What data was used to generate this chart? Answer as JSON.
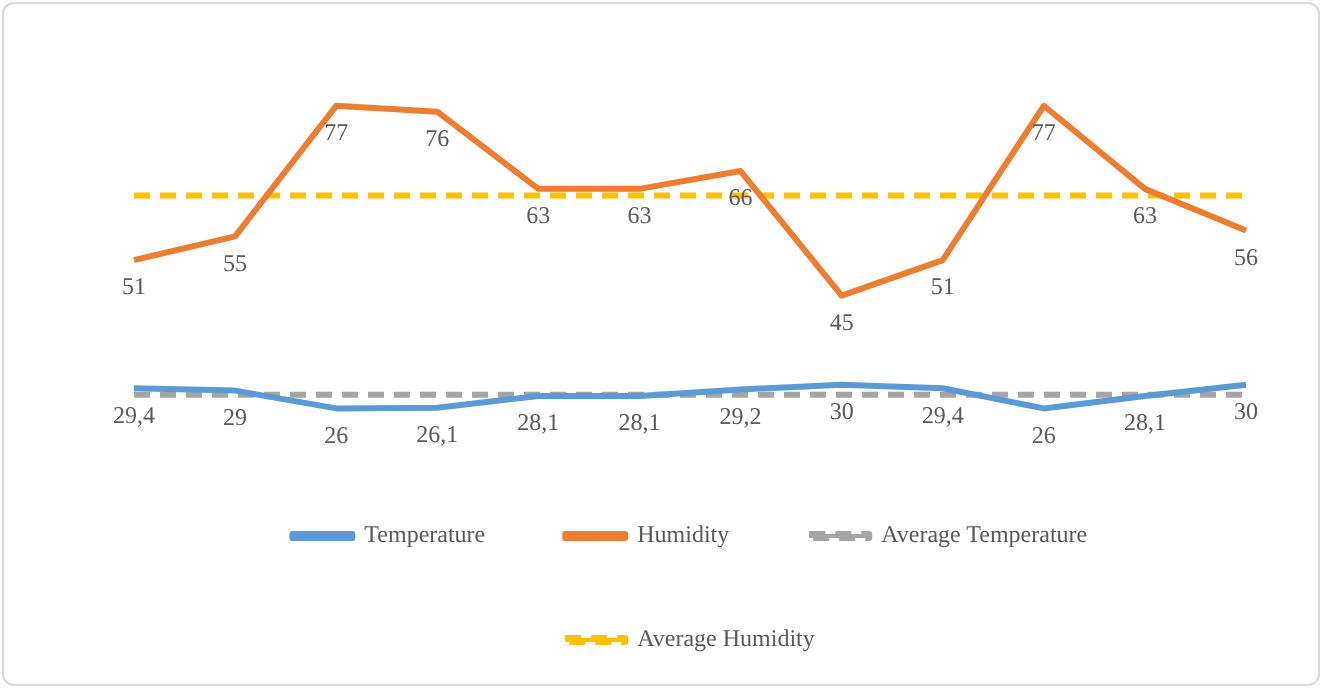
{
  "chart_data": {
    "type": "line",
    "categories": [
      null,
      null,
      null,
      null,
      null,
      null,
      null,
      null,
      null,
      null,
      null,
      null
    ],
    "series": [
      {
        "name": "Temperature",
        "color": "#5b9bd5",
        "values": [
          29.4,
          29,
          26,
          26.1,
          28.1,
          28.1,
          29.2,
          30,
          29.4,
          26,
          28.1,
          30
        ],
        "value_labels": [
          "29,4",
          "29",
          "26",
          "26,1",
          "28,1",
          "28,1",
          "29,2",
          "30",
          "29,4",
          "26",
          "28,1",
          "30"
        ]
      },
      {
        "name": "Humidity",
        "color": "#ed7d31",
        "values": [
          51,
          55,
          77,
          76,
          63,
          63,
          66,
          45,
          51,
          77,
          63,
          56
        ],
        "value_labels": [
          "51",
          "55",
          "77",
          "76",
          "63",
          "63",
          "66",
          "45",
          "51",
          "77",
          "63",
          "56"
        ]
      },
      {
        "name": "Average Temperature",
        "color": "#a5a5a5",
        "line_style": "dashed",
        "values": [
          28.3,
          28.3,
          28.3,
          28.3,
          28.3,
          28.3,
          28.3,
          28.3,
          28.3,
          28.3,
          28.3,
          28.3
        ]
      },
      {
        "name": "Average Humidity",
        "color": "#ffc000",
        "line_style": "dashed",
        "values": [
          61.9,
          61.9,
          61.9,
          61.9,
          61.9,
          61.9,
          61.9,
          61.9,
          61.9,
          61.9,
          61.9,
          61.9
        ]
      }
    ],
    "marker": "none",
    "legend": "bottom"
  }
}
